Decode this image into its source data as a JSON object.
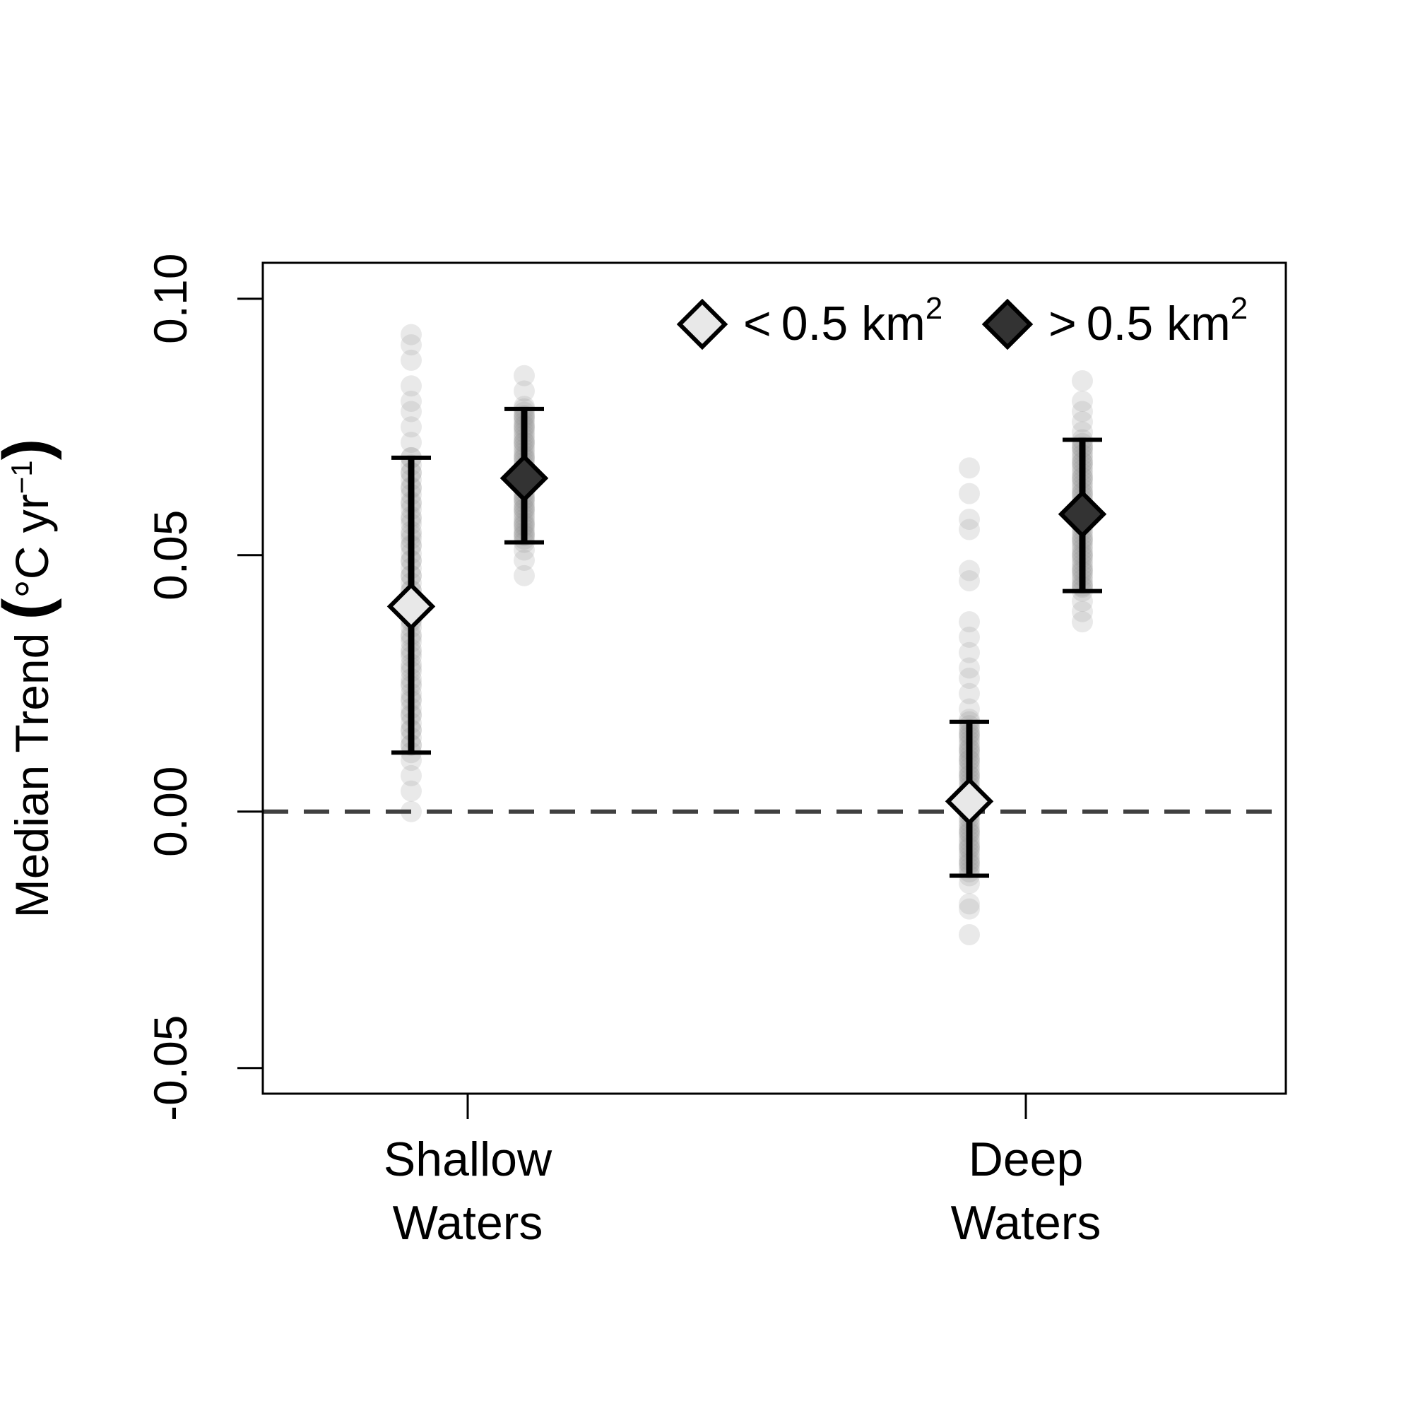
{
  "chart_data": {
    "type": "scatter",
    "title": "",
    "xlabel": "",
    "ylabel": "Median Trend (°C yr⁻¹)",
    "ylabel_parts": {
      "main": "Median Trend ",
      "open": "(",
      "unit": "°C yr",
      "sup": "−1",
      "close": ")"
    },
    "ylim": [
      -0.055,
      0.107
    ],
    "yticks": [
      {
        "value": -0.05,
        "label": "-0.05"
      },
      {
        "value": 0.0,
        "label": "0.00"
      },
      {
        "value": 0.05,
        "label": "0.05"
      },
      {
        "value": 0.1,
        "label": "0.10"
      }
    ],
    "categories": [
      {
        "label_line1": "Shallow",
        "label_line2": "Waters"
      },
      {
        "label_line1": "Deep",
        "label_line2": "Waters"
      }
    ],
    "reference_line": {
      "y": 0.0,
      "style": "dashed",
      "color": "#404040"
    },
    "grid": false,
    "legend": {
      "position": "top-right"
    },
    "series": [
      {
        "name": "< 0.5 km²",
        "legend_symbol": "<",
        "legend_value": "0.5 km",
        "legend_sup": "2",
        "marker": "diamond",
        "fill": "#e8e8e8",
        "median": [
          0.04,
          0.002
        ],
        "lower": [
          0.0115,
          -0.0125
        ],
        "upper": [
          0.069,
          0.0175
        ],
        "samples": [
          [
            0.093,
            0.091,
            0.088,
            0.083,
            0.08,
            0.078,
            0.075,
            0.072,
            0.069,
            0.066,
            0.063,
            0.06,
            0.057,
            0.054,
            0.052,
            0.049,
            0.046,
            0.043,
            0.037,
            0.034,
            0.031,
            0.028,
            0.025,
            0.022,
            0.019,
            0.016,
            0.013,
            0.01,
            0.007,
            0.004,
            0.0
          ],
          [
            0.067,
            0.062,
            0.057,
            0.055,
            0.047,
            0.045,
            0.037,
            0.034,
            0.031,
            0.028,
            0.026,
            0.023,
            0.02,
            0.018,
            0.015,
            0.012,
            0.01,
            0.007,
            0.004,
            0.0,
            -0.004,
            -0.007,
            -0.01,
            -0.014,
            -0.018,
            -0.019,
            -0.024
          ]
        ]
      },
      {
        "name": "> 0.5 km²",
        "legend_symbol": ">",
        "legend_value": "0.5 km",
        "legend_sup": "2",
        "marker": "diamond",
        "fill": "#333333",
        "median": [
          0.065,
          0.058
        ],
        "lower": [
          0.0525,
          0.043
        ],
        "upper": [
          0.0785,
          0.0725
        ],
        "samples": [
          [
            0.085,
            0.082,
            0.079,
            0.077,
            0.075,
            0.072,
            0.069,
            0.067,
            0.064,
            0.061,
            0.059,
            0.056,
            0.054,
            0.051,
            0.049,
            0.046
          ],
          [
            0.084,
            0.08,
            0.078,
            0.076,
            0.074,
            0.071,
            0.068,
            0.065,
            0.062,
            0.06,
            0.056,
            0.053,
            0.05,
            0.047,
            0.044,
            0.041,
            0.039,
            0.037
          ]
        ]
      }
    ]
  }
}
